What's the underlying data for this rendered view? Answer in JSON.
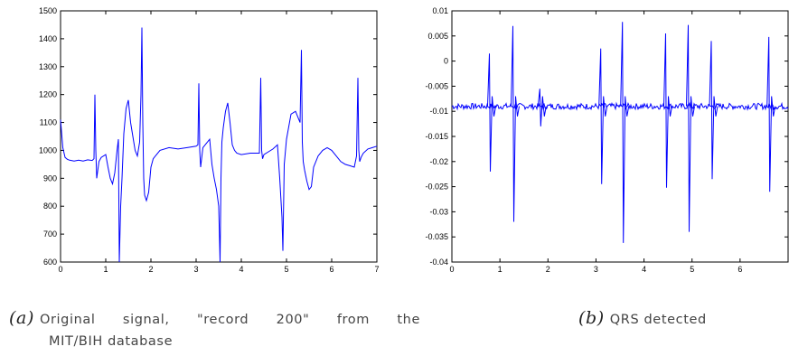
{
  "chart_data": [
    {
      "type": "line",
      "title": "",
      "xlabel": "",
      "ylabel": "",
      "xlim": [
        0,
        7
      ],
      "ylim": [
        600,
        1500
      ],
      "xticks": [
        "0",
        "1",
        "2",
        "3",
        "4",
        "5",
        "6",
        "7"
      ],
      "yticks": [
        "600",
        "700",
        "800",
        "900",
        "1000",
        "1100",
        "1200",
        "1300",
        "1400",
        "1500"
      ],
      "grid": false,
      "color": "#0000ff",
      "series": [
        {
          "x": [
            0,
            0.05,
            0.1,
            0.15,
            0.2,
            0.3,
            0.4,
            0.5,
            0.6,
            0.7,
            0.74,
            0.76,
            0.78,
            0.8,
            0.85,
            0.9,
            1.0,
            1.05,
            1.1,
            1.15,
            1.2,
            1.25,
            1.28,
            1.3,
            1.33,
            1.36,
            1.4,
            1.45,
            1.5,
            1.55,
            1.6,
            1.65,
            1.7,
            1.75,
            1.78,
            1.8,
            1.82,
            1.84,
            1.86,
            1.9,
            1.95,
            2.0,
            2.05,
            2.1,
            2.2,
            2.4,
            2.6,
            2.8,
            3.0,
            3.04,
            3.06,
            3.08,
            3.1,
            3.15,
            3.2,
            3.3,
            3.35,
            3.4,
            3.45,
            3.5,
            3.53,
            3.55,
            3.57,
            3.6,
            3.65,
            3.7,
            3.75,
            3.8,
            3.85,
            3.9,
            4.0,
            4.2,
            4.4,
            4.43,
            4.45,
            4.47,
            4.5,
            4.6,
            4.7,
            4.8,
            4.85,
            4.9,
            4.92,
            4.95,
            5.0,
            5.1,
            5.2,
            5.3,
            5.33,
            5.35,
            5.37,
            5.4,
            5.45,
            5.5,
            5.55,
            5.6,
            5.7,
            5.8,
            5.9,
            6.0,
            6.1,
            6.2,
            6.3,
            6.4,
            6.5,
            6.55,
            6.58,
            6.6,
            6.62,
            6.65,
            6.7,
            6.8,
            6.9,
            7.0
          ],
          "y": [
            1110,
            1010,
            975,
            968,
            965,
            962,
            965,
            962,
            966,
            964,
            970,
            1200,
            1000,
            900,
            960,
            975,
            985,
            940,
            900,
            880,
            920,
            1000,
            1040,
            600,
            800,
            900,
            1060,
            1150,
            1180,
            1100,
            1050,
            1000,
            980,
            1030,
            1200,
            1440,
            1100,
            900,
            840,
            820,
            850,
            940,
            970,
            980,
            1000,
            1010,
            1005,
            1010,
            1015,
            1020,
            1240,
            1000,
            940,
            1010,
            1020,
            1040,
            950,
            900,
            860,
            800,
            600,
            900,
            1030,
            1080,
            1140,
            1170,
            1100,
            1020,
            1000,
            990,
            985,
            990,
            990,
            1260,
            1000,
            970,
            985,
            995,
            1005,
            1020,
            900,
            760,
            640,
            950,
            1040,
            1130,
            1140,
            1100,
            1360,
            1030,
            960,
            930,
            890,
            860,
            870,
            940,
            980,
            1000,
            1010,
            1000,
            980,
            960,
            950,
            945,
            940,
            980,
            1260,
            1000,
            960,
            975,
            990,
            1005,
            1010,
            1015
          ]
        }
      ]
    },
    {
      "type": "line",
      "title": "",
      "xlabel": "",
      "ylabel": "",
      "xlim": [
        0,
        7
      ],
      "ylim": [
        -0.04,
        0.01
      ],
      "xticks": [
        "0",
        "1",
        "2",
        "3",
        "4",
        "5",
        "6"
      ],
      "yticks": [
        "-0.04",
        "-0.035",
        "-0.03",
        "-0.025",
        "-0.02",
        "-0.015",
        "-0.01",
        "-0.005",
        "0",
        "0.005",
        "0.01"
      ],
      "grid": false,
      "color": "#0000ff",
      "baseline": -0.009,
      "spikes": [
        {
          "x": 0.78,
          "max": 0.0015,
          "min": -0.022
        },
        {
          "x": 1.27,
          "max": 0.007,
          "min": -0.032
        },
        {
          "x": 1.83,
          "max": -0.0055,
          "min": -0.013
        },
        {
          "x": 3.1,
          "max": 0.0025,
          "min": -0.0245
        },
        {
          "x": 3.55,
          "max": 0.0078,
          "min": -0.0362
        },
        {
          "x": 4.45,
          "max": 0.0055,
          "min": -0.0252
        },
        {
          "x": 4.92,
          "max": 0.0072,
          "min": -0.034
        },
        {
          "x": 5.4,
          "max": 0.004,
          "min": -0.0235
        },
        {
          "x": 6.6,
          "max": 0.0048,
          "min": -0.026
        }
      ]
    }
  ],
  "captions": {
    "a_label": "(a)",
    "a_text_line1": "Original signal, \"record 200\" from the",
    "a_text_line2": "MIT/BIH database",
    "b_label": "(b)",
    "b_text": "QRS detected"
  }
}
